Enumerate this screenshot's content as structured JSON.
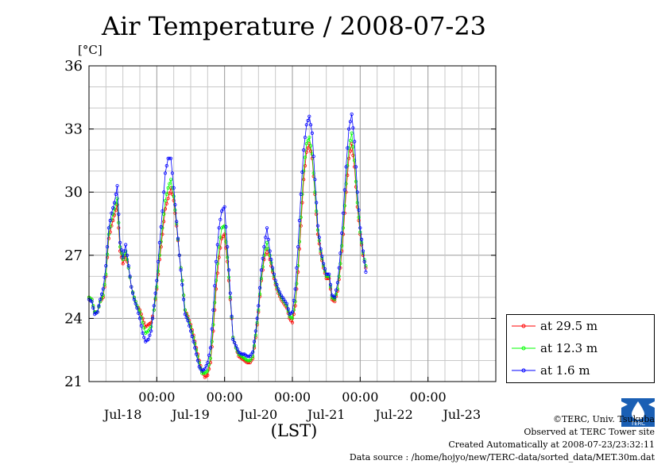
{
  "title": "Air Temperature / 2008-07-23",
  "unit_label": "[°C]",
  "x_axis_label": "(LST)",
  "credits": [
    "©TERC, Univ. Tsukuba",
    "Observed at TERC Tower site",
    "Created Automatically at 2008-07-23/23:32:11",
    "Data source : /home/hojyo/new/TERC-data/sorted_data/MET.30m.dat"
  ],
  "logo_text": "TERC",
  "chart_data": {
    "type": "line",
    "title": "Air Temperature / 2008-07-23",
    "ylabel": "[°C]",
    "xlabel": "(LST)",
    "ylim": [
      21,
      36
    ],
    "yticks": [
      21,
      24,
      27,
      30,
      33,
      36
    ],
    "x_ticks": [
      {
        "hour": 24,
        "label": "00:00"
      },
      {
        "hour": 48,
        "label": "00:00"
      },
      {
        "hour": 72,
        "label": "00:00"
      },
      {
        "hour": 96,
        "label": "00:00"
      },
      {
        "hour": 120,
        "label": "00:00"
      }
    ],
    "date_labels": [
      {
        "hour": 12,
        "label": "Jul-18"
      },
      {
        "hour": 36,
        "label": "Jul-19"
      },
      {
        "hour": 60,
        "label": "Jul-20"
      },
      {
        "hour": 84,
        "label": "Jul-21"
      },
      {
        "hour": 108,
        "label": "Jul-22"
      },
      {
        "hour": 132,
        "label": "Jul-23"
      }
    ],
    "xlim_hours": [
      0,
      144
    ],
    "grid": true,
    "legend_position": "right-bottom",
    "series": [
      {
        "name": "at 29.5 m",
        "color": "#ff0000",
        "marker": "open-circle",
        "points": [
          [
            0,
            25.0
          ],
          [
            1,
            24.9
          ],
          [
            2,
            24.3
          ],
          [
            3,
            24.3
          ],
          [
            4,
            24.8
          ],
          [
            5,
            25.0
          ],
          [
            6,
            26.0
          ],
          [
            7,
            27.8
          ],
          [
            8,
            28.4
          ],
          [
            9,
            28.9
          ],
          [
            10,
            29.4
          ],
          [
            11,
            27.2
          ],
          [
            12,
            26.6
          ],
          [
            13,
            27.0
          ],
          [
            14,
            26.4
          ],
          [
            15,
            25.5
          ],
          [
            16,
            25.0
          ],
          [
            17,
            24.6
          ],
          [
            18,
            24.4
          ],
          [
            19,
            24.0
          ],
          [
            20,
            23.6
          ],
          [
            21,
            23.7
          ],
          [
            22,
            23.8
          ],
          [
            23,
            24.4
          ],
          [
            24,
            25.4
          ],
          [
            25,
            26.8
          ],
          [
            26,
            28.0
          ],
          [
            27,
            29.2
          ],
          [
            28,
            29.7
          ],
          [
            29,
            30.2
          ],
          [
            30,
            29.6
          ],
          [
            31,
            28.4
          ],
          [
            32,
            27.0
          ],
          [
            33,
            25.8
          ],
          [
            34,
            24.4
          ],
          [
            35,
            24.1
          ],
          [
            36,
            23.7
          ],
          [
            37,
            23.2
          ],
          [
            38,
            22.6
          ],
          [
            39,
            22.0
          ],
          [
            40,
            21.5
          ],
          [
            41,
            21.2
          ],
          [
            42,
            21.3
          ],
          [
            43,
            21.9
          ],
          [
            44,
            23.4
          ],
          [
            45,
            25.4
          ],
          [
            46,
            26.9
          ],
          [
            47,
            27.8
          ],
          [
            48,
            28.0
          ],
          [
            49,
            26.7
          ],
          [
            50,
            24.9
          ],
          [
            51,
            23.1
          ],
          [
            52,
            22.6
          ],
          [
            53,
            22.2
          ],
          [
            54,
            22.1
          ],
          [
            55,
            22.0
          ],
          [
            56,
            21.9
          ],
          [
            57,
            21.9
          ],
          [
            58,
            22.1
          ],
          [
            59,
            23.1
          ],
          [
            60,
            24.3
          ],
          [
            61,
            25.8
          ],
          [
            62,
            26.8
          ],
          [
            63,
            27.3
          ],
          [
            64,
            26.8
          ],
          [
            65,
            26.2
          ],
          [
            66,
            25.6
          ],
          [
            67,
            25.2
          ],
          [
            68,
            24.9
          ],
          [
            69,
            24.7
          ],
          [
            70,
            24.5
          ],
          [
            71,
            24.0
          ],
          [
            72,
            23.8
          ],
          [
            73,
            24.6
          ],
          [
            74,
            26.2
          ],
          [
            75,
            28.4
          ],
          [
            76,
            30.6
          ],
          [
            77,
            31.9
          ],
          [
            78,
            32.3
          ],
          [
            79,
            31.6
          ],
          [
            80,
            29.9
          ],
          [
            81,
            28.0
          ],
          [
            82,
            27.1
          ],
          [
            83,
            26.4
          ],
          [
            84,
            25.9
          ],
          [
            85,
            25.9
          ],
          [
            86,
            24.9
          ],
          [
            87,
            24.8
          ],
          [
            88,
            25.3
          ],
          [
            89,
            26.4
          ],
          [
            90,
            28.0
          ],
          [
            91,
            30.0
          ],
          [
            92,
            31.6
          ],
          [
            93,
            32.3
          ],
          [
            94,
            31.2
          ],
          [
            95,
            29.3
          ],
          [
            96,
            28.0
          ],
          [
            97,
            27.0
          ],
          [
            98,
            26.4
          ]
        ]
      },
      {
        "name": "at 12.3 m",
        "color": "#00ff00",
        "marker": "open-circle",
        "points": [
          [
            0,
            25.0
          ],
          [
            1,
            24.9
          ],
          [
            2,
            24.3
          ],
          [
            3,
            24.3
          ],
          [
            4,
            24.8
          ],
          [
            5,
            25.1
          ],
          [
            6,
            26.1
          ],
          [
            7,
            28.0
          ],
          [
            8,
            28.7
          ],
          [
            9,
            29.2
          ],
          [
            10,
            29.7
          ],
          [
            11,
            27.4
          ],
          [
            12,
            26.8
          ],
          [
            13,
            27.2
          ],
          [
            14,
            26.4
          ],
          [
            15,
            25.5
          ],
          [
            16,
            25.0
          ],
          [
            17,
            24.6
          ],
          [
            18,
            24.3
          ],
          [
            19,
            23.8
          ],
          [
            20,
            23.3
          ],
          [
            21,
            23.4
          ],
          [
            22,
            23.6
          ],
          [
            23,
            24.4
          ],
          [
            24,
            25.5
          ],
          [
            25,
            27.0
          ],
          [
            26,
            28.3
          ],
          [
            27,
            29.6
          ],
          [
            28,
            30.2
          ],
          [
            29,
            30.6
          ],
          [
            30,
            29.8
          ],
          [
            31,
            28.5
          ],
          [
            32,
            27.0
          ],
          [
            33,
            25.8
          ],
          [
            34,
            24.4
          ],
          [
            35,
            24.0
          ],
          [
            36,
            23.6
          ],
          [
            37,
            23.1
          ],
          [
            38,
            22.5
          ],
          [
            39,
            21.9
          ],
          [
            40,
            21.4
          ],
          [
            41,
            21.4
          ],
          [
            42,
            21.5
          ],
          [
            43,
            22.1
          ],
          [
            44,
            23.7
          ],
          [
            45,
            25.8
          ],
          [
            46,
            27.4
          ],
          [
            47,
            28.3
          ],
          [
            48,
            28.4
          ],
          [
            49,
            26.9
          ],
          [
            50,
            25.0
          ],
          [
            51,
            23.1
          ],
          [
            52,
            22.6
          ],
          [
            53,
            22.3
          ],
          [
            54,
            22.2
          ],
          [
            55,
            22.1
          ],
          [
            56,
            22.0
          ],
          [
            57,
            22.0
          ],
          [
            58,
            22.2
          ],
          [
            59,
            23.2
          ],
          [
            60,
            24.4
          ],
          [
            61,
            25.9
          ],
          [
            62,
            27.0
          ],
          [
            63,
            27.6
          ],
          [
            64,
            27.0
          ],
          [
            65,
            26.3
          ],
          [
            66,
            25.7
          ],
          [
            67,
            25.3
          ],
          [
            68,
            25.0
          ],
          [
            69,
            24.8
          ],
          [
            70,
            24.6
          ],
          [
            71,
            24.1
          ],
          [
            72,
            24.0
          ],
          [
            73,
            24.8
          ],
          [
            74,
            26.5
          ],
          [
            75,
            28.8
          ],
          [
            76,
            31.0
          ],
          [
            77,
            32.3
          ],
          [
            78,
            32.6
          ],
          [
            79,
            31.8
          ],
          [
            80,
            30.0
          ],
          [
            81,
            28.2
          ],
          [
            82,
            27.2
          ],
          [
            83,
            26.5
          ],
          [
            84,
            26.0
          ],
          [
            85,
            26.0
          ],
          [
            86,
            25.0
          ],
          [
            87,
            24.9
          ],
          [
            88,
            25.4
          ],
          [
            89,
            26.6
          ],
          [
            90,
            28.3
          ],
          [
            91,
            30.4
          ],
          [
            92,
            32.1
          ],
          [
            93,
            32.8
          ],
          [
            94,
            31.5
          ],
          [
            95,
            29.5
          ],
          [
            96,
            28.1
          ],
          [
            97,
            27.1
          ],
          [
            98,
            26.5
          ]
        ]
      },
      {
        "name": "at 1.6 m",
        "color": "#0000ff",
        "marker": "open-circle",
        "points": [
          [
            0,
            24.9
          ],
          [
            1,
            24.8
          ],
          [
            2,
            24.2
          ],
          [
            3,
            24.3
          ],
          [
            4,
            24.9
          ],
          [
            5,
            25.4
          ],
          [
            6,
            26.5
          ],
          [
            7,
            28.3
          ],
          [
            8,
            29.0
          ],
          [
            9,
            29.5
          ],
          [
            10,
            30.3
          ],
          [
            11,
            27.6
          ],
          [
            12,
            26.9
          ],
          [
            13,
            27.5
          ],
          [
            14,
            26.5
          ],
          [
            15,
            25.5
          ],
          [
            16,
            24.9
          ],
          [
            17,
            24.5
          ],
          [
            18,
            24.0
          ],
          [
            19,
            23.3
          ],
          [
            20,
            22.9
          ],
          [
            21,
            23.0
          ],
          [
            22,
            23.4
          ],
          [
            23,
            24.6
          ],
          [
            24,
            25.8
          ],
          [
            25,
            27.6
          ],
          [
            26,
            29.1
          ],
          [
            27,
            30.9
          ],
          [
            28,
            31.6
          ],
          [
            29,
            31.6
          ],
          [
            30,
            30.2
          ],
          [
            31,
            28.6
          ],
          [
            32,
            27.0
          ],
          [
            33,
            25.6
          ],
          [
            34,
            24.2
          ],
          [
            35,
            23.9
          ],
          [
            36,
            23.4
          ],
          [
            37,
            22.9
          ],
          [
            38,
            22.3
          ],
          [
            39,
            21.7
          ],
          [
            40,
            21.5
          ],
          [
            41,
            21.6
          ],
          [
            42,
            21.9
          ],
          [
            43,
            22.6
          ],
          [
            44,
            24.4
          ],
          [
            45,
            26.7
          ],
          [
            46,
            28.3
          ],
          [
            47,
            29.1
          ],
          [
            48,
            29.3
          ],
          [
            49,
            27.4
          ],
          [
            50,
            25.2
          ],
          [
            51,
            23.0
          ],
          [
            52,
            22.7
          ],
          [
            53,
            22.4
          ],
          [
            54,
            22.3
          ],
          [
            55,
            22.3
          ],
          [
            56,
            22.2
          ],
          [
            57,
            22.2
          ],
          [
            58,
            22.4
          ],
          [
            59,
            23.4
          ],
          [
            60,
            24.6
          ],
          [
            61,
            26.3
          ],
          [
            62,
            27.4
          ],
          [
            63,
            28.3
          ],
          [
            64,
            27.2
          ],
          [
            65,
            26.4
          ],
          [
            66,
            25.8
          ],
          [
            67,
            25.4
          ],
          [
            68,
            25.1
          ],
          [
            69,
            24.9
          ],
          [
            70,
            24.7
          ],
          [
            71,
            24.2
          ],
          [
            72,
            24.3
          ],
          [
            73,
            25.4
          ],
          [
            74,
            27.4
          ],
          [
            75,
            29.9
          ],
          [
            76,
            32.0
          ],
          [
            77,
            33.2
          ],
          [
            78,
            33.6
          ],
          [
            79,
            32.8
          ],
          [
            80,
            30.6
          ],
          [
            81,
            28.4
          ],
          [
            82,
            27.3
          ],
          [
            83,
            26.6
          ],
          [
            84,
            26.1
          ],
          [
            85,
            26.1
          ],
          [
            86,
            25.1
          ],
          [
            87,
            25.0
          ],
          [
            88,
            25.7
          ],
          [
            89,
            27.1
          ],
          [
            90,
            29.0
          ],
          [
            91,
            31.2
          ],
          [
            92,
            33.0
          ],
          [
            93,
            33.7
          ],
          [
            94,
            32.4
          ],
          [
            95,
            30.0
          ],
          [
            96,
            28.3
          ],
          [
            97,
            27.2
          ],
          [
            98,
            26.2
          ]
        ]
      }
    ]
  }
}
